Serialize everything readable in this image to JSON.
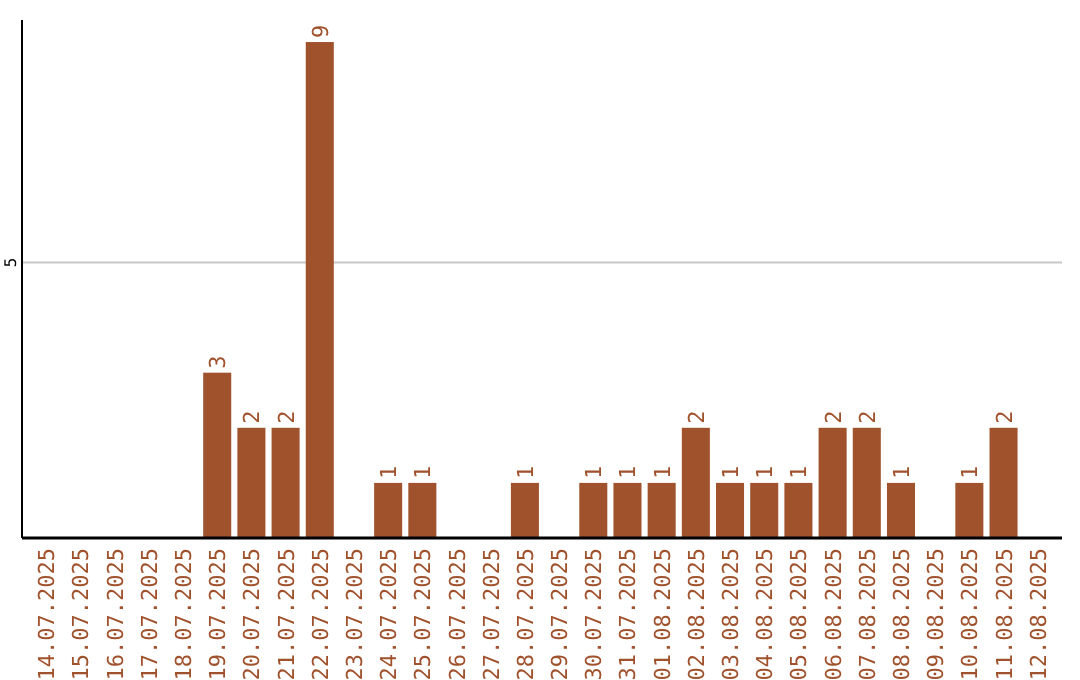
{
  "chart_data": {
    "type": "bar",
    "categories": [
      "14.07.2025",
      "15.07.2025",
      "16.07.2025",
      "17.07.2025",
      "18.07.2025",
      "19.07.2025",
      "20.07.2025",
      "21.07.2025",
      "22.07.2025",
      "23.07.2025",
      "24.07.2025",
      "25.07.2025",
      "26.07.2025",
      "27.07.2025",
      "28.07.2025",
      "29.07.2025",
      "30.07.2025",
      "31.07.2025",
      "01.08.2025",
      "02.08.2025",
      "03.08.2025",
      "04.08.2025",
      "05.08.2025",
      "06.08.2025",
      "07.08.2025",
      "08.08.2025",
      "09.08.2025",
      "10.08.2025",
      "11.08.2025",
      "12.08.2025"
    ],
    "values": [
      0,
      0,
      0,
      0,
      0,
      3,
      2,
      2,
      9,
      0,
      1,
      1,
      0,
      0,
      1,
      0,
      1,
      1,
      1,
      2,
      1,
      1,
      1,
      2,
      2,
      1,
      0,
      1,
      2,
      0
    ],
    "value_labels": [
      null,
      null,
      null,
      null,
      null,
      "3",
      "2",
      "2",
      "9",
      null,
      "1",
      "1",
      null,
      null,
      "1",
      null,
      "1",
      "1",
      "1",
      "2",
      "1",
      "1",
      "1",
      "2",
      "2",
      "1",
      null,
      "1",
      "2",
      null
    ],
    "color": "#a0522d",
    "ylim": [
      0,
      9.4
    ],
    "yticks": [
      5
    ],
    "grid": "y"
  }
}
